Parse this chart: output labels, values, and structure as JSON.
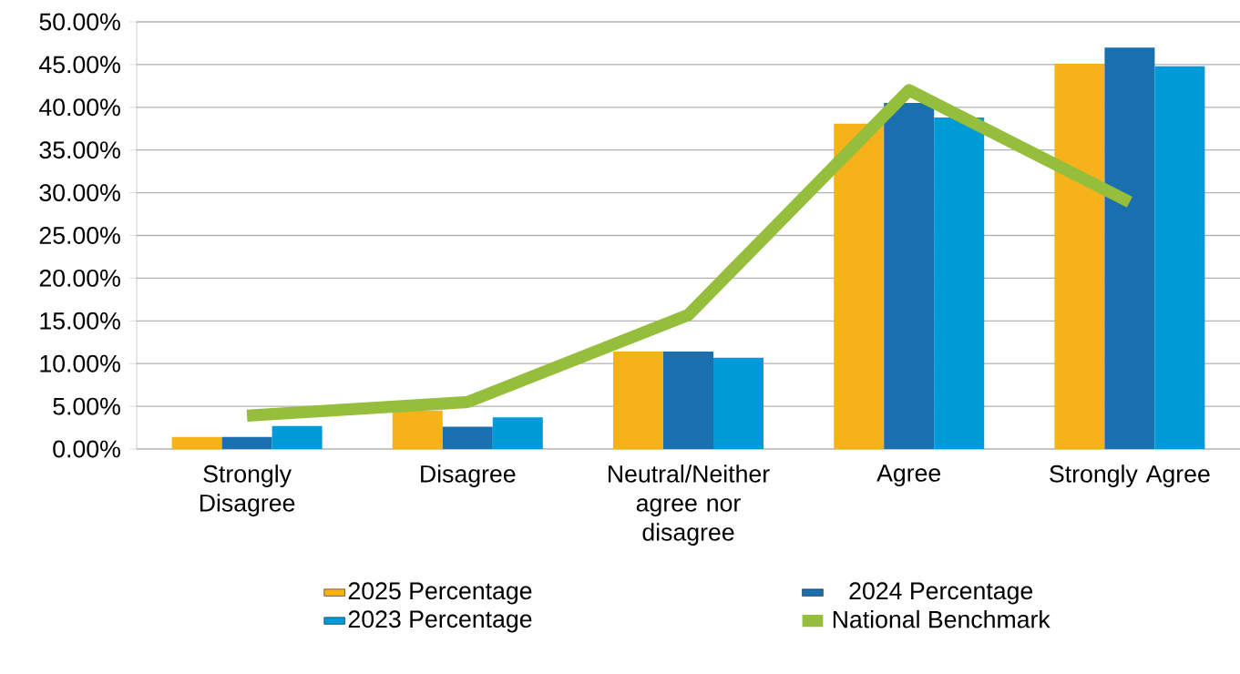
{
  "chart_data": {
    "type": "bar",
    "categories": [
      "Strongly Disagree",
      "Disagree",
      "Neutral/Neither agree nor disagree",
      "Agree",
      "Strongly Agree"
    ],
    "series": [
      {
        "name": "2025 Percentage",
        "color": "#f5b21a",
        "values": [
          1.4,
          4.5,
          11.4,
          38.1,
          45.1
        ]
      },
      {
        "name": "2024 Percentage",
        "color": "#1a6faf",
        "values": [
          1.4,
          2.6,
          11.4,
          40.5,
          47.0
        ]
      },
      {
        "name": "2023 Percentage",
        "color": "#009ad6",
        "values": [
          2.7,
          3.7,
          10.7,
          38.8,
          44.8
        ]
      },
      {
        "name": "National Benchmark",
        "color": "#95be3c",
        "type": "line",
        "values": [
          3.9,
          5.5,
          15.7,
          42.0,
          28.9
        ]
      }
    ],
    "ylim": [
      0,
      50
    ],
    "yticks": [
      {
        "value": 0,
        "label": "0.00%"
      },
      {
        "value": 5,
        "label": "5.00%"
      },
      {
        "value": 10,
        "label": "10.00%"
      },
      {
        "value": 15,
        "label": "15.00%"
      },
      {
        "value": 20,
        "label": "20.00%"
      },
      {
        "value": 25,
        "label": "25.00%"
      },
      {
        "value": 30,
        "label": "30.00%"
      },
      {
        "value": 35,
        "label": "35.00%"
      },
      {
        "value": 40,
        "label": "40.00%"
      },
      {
        "value": 45,
        "label": "45.00%"
      },
      {
        "value": 50,
        "label": "50.00%"
      }
    ],
    "grid": "y",
    "legend": "bottom",
    "marker": "none"
  }
}
